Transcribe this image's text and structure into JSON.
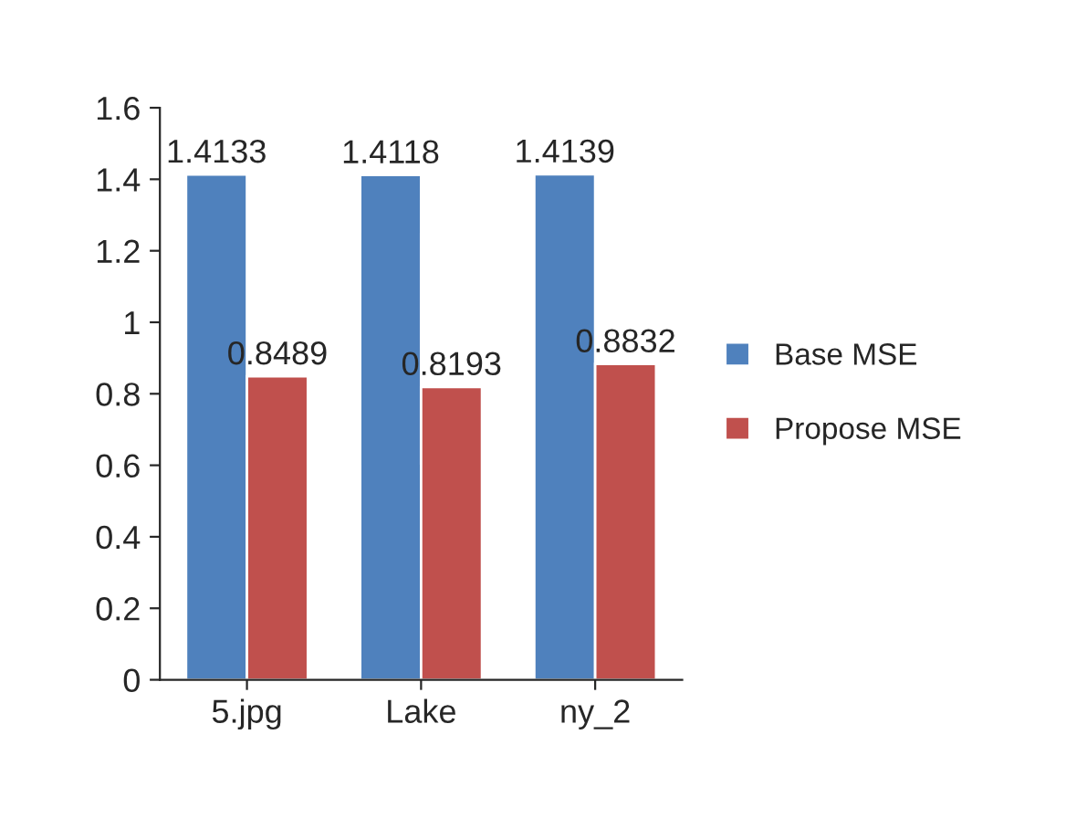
{
  "chart_data": {
    "type": "bar",
    "categories": [
      "5.jpg",
      "Lake",
      "ny_2"
    ],
    "series": [
      {
        "name": "Base MSE",
        "color": "#4f81bd",
        "values": [
          1.4133,
          1.4118,
          1.4139
        ]
      },
      {
        "name": "Propose MSE",
        "color": "#c0504d",
        "values": [
          0.8489,
          0.8193,
          0.8832
        ]
      }
    ],
    "ylim": [
      0,
      1.6
    ],
    "yticks": [
      0,
      0.2,
      0.4,
      0.6,
      0.8,
      1,
      1.2,
      1.4,
      1.6
    ],
    "data_labels": true,
    "legend": "right",
    "grid": false
  }
}
